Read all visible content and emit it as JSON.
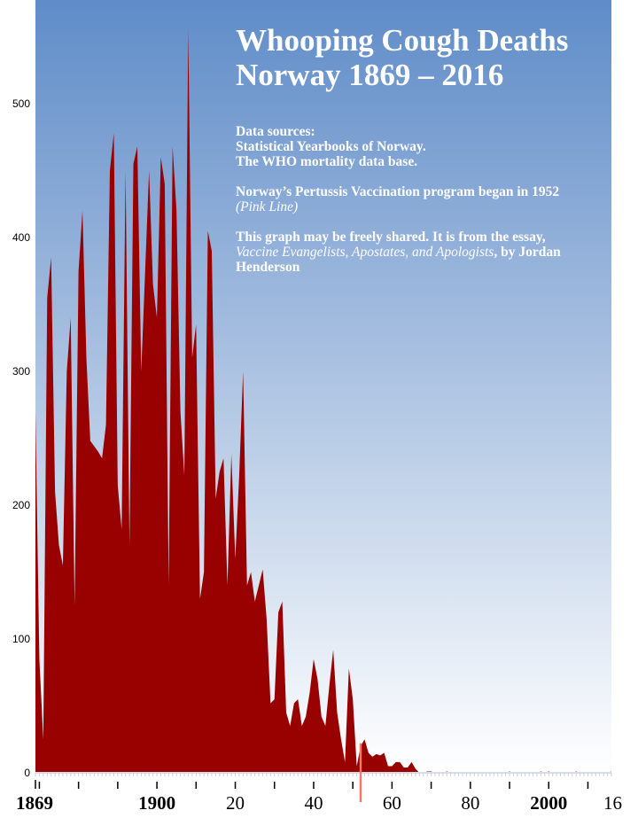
{
  "title": {
    "line1": "Whooping Cough Deaths",
    "line2": "Norway 1869 – 2016"
  },
  "notes": {
    "sources_heading": "Data sources:",
    "source1": "Statistical Yearbooks of Norway.",
    "source2": "The WHO mortality data base.",
    "program_text": "Norway’s Pertussis Vaccination program began in 1952",
    "program_marker": "(Pink Line)",
    "share_text": "This graph may be freely shared. It is from the essay,",
    "essay_title": "Vaccine Evangelists, Apostates, and Apologists",
    "byline": ", by Jordan Henderson"
  },
  "colors": {
    "area_fill": "#990000",
    "background_top": "#5f8cc8",
    "background_bottom": "#ffffff",
    "vaccination_line": "#f07a66"
  },
  "chart_data": {
    "type": "area",
    "title": "Whooping Cough Deaths Norway 1869 – 2016",
    "xlabel": "",
    "ylabel": "",
    "xlim": [
      1869,
      2016
    ],
    "ylim": [
      0,
      560
    ],
    "grid": false,
    "y_ticks": [
      "0",
      "100",
      "200",
      "300",
      "400",
      "500"
    ],
    "x_tick_labels": [
      {
        "year": 1869,
        "text": "1869",
        "bold": true
      },
      {
        "year": 1900,
        "text": "1900",
        "bold": true
      },
      {
        "year": 1920,
        "text": "20",
        "bold": false
      },
      {
        "year": 1940,
        "text": "40",
        "bold": false
      },
      {
        "year": 1960,
        "text": "60",
        "bold": false
      },
      {
        "year": 1980,
        "text": "80",
        "bold": false
      },
      {
        "year": 2000,
        "text": "2000",
        "bold": true
      },
      {
        "year": 2016,
        "text": "16",
        "bold": false
      }
    ],
    "vaccination_year": 1952,
    "series": [
      {
        "x": [
          1869,
          1870,
          1871,
          1872,
          1873,
          1874,
          1875,
          1876,
          1877,
          1878,
          1879,
          1880,
          1881,
          1882,
          1883,
          1884,
          1885,
          1886,
          1887,
          1888,
          1889,
          1890,
          1891,
          1892,
          1893,
          1894,
          1895,
          1896,
          1897,
          1898,
          1899,
          1900,
          1901,
          1902,
          1903,
          1904,
          1905,
          1906,
          1907,
          1908,
          1909,
          1910,
          1911,
          1912,
          1913,
          1914,
          1915,
          1916,
          1917,
          1918,
          1919,
          1920,
          1921,
          1922,
          1923,
          1924,
          1925,
          1926,
          1927,
          1928,
          1929,
          1930,
          1931,
          1932,
          1933,
          1934,
          1935,
          1936,
          1937,
          1938,
          1939,
          1940,
          1941,
          1942,
          1943,
          1944,
          1945,
          1946,
          1947,
          1948,
          1949,
          1950,
          1951,
          1952,
          1953,
          1954,
          1955,
          1956,
          1957,
          1958,
          1959,
          1960,
          1961,
          1962,
          1963,
          1964,
          1965,
          1966,
          1967,
          1968,
          1969,
          1970,
          1971,
          1972,
          1973,
          1974,
          1975,
          1976,
          1977,
          1978,
          1979,
          1980,
          1981,
          1982,
          1983,
          1984,
          1985,
          1986,
          1987,
          1988,
          1989,
          1990,
          1991,
          1992,
          1993,
          1994,
          1995,
          1996,
          1997,
          1998,
          1999,
          2000,
          2001,
          2002,
          2003,
          2004,
          2005,
          2006,
          2007,
          2008,
          2009,
          2010,
          2011,
          2012,
          2013,
          2014,
          2015,
          2016
        ],
        "values": [
          270,
          85,
          25,
          355,
          385,
          210,
          170,
          155,
          300,
          340,
          125,
          375,
          420,
          310,
          248,
          244,
          240,
          235,
          260,
          450,
          478,
          215,
          182,
          450,
          170,
          455,
          468,
          300,
          375,
          450,
          365,
          340,
          460,
          440,
          140,
          468,
          420,
          270,
          222,
          555,
          310,
          335,
          130,
          150,
          405,
          390,
          205,
          225,
          235,
          140,
          238,
          160,
          222,
          300,
          140,
          150,
          128,
          140,
          152,
          115,
          52,
          55,
          120,
          128,
          45,
          35,
          52,
          55,
          35,
          42,
          60,
          85,
          70,
          42,
          35,
          65,
          92,
          45,
          25,
          8,
          78,
          55,
          5,
          20,
          25,
          15,
          12,
          14,
          13,
          15,
          5,
          5,
          8,
          8,
          4,
          4,
          8,
          3,
          0,
          0,
          1,
          1,
          0,
          0,
          0,
          1,
          0,
          0,
          0,
          0,
          0,
          0,
          0,
          0,
          0,
          0,
          0,
          0,
          0,
          0,
          0,
          1,
          0,
          0,
          0,
          0,
          0,
          0,
          0,
          1,
          0,
          1,
          0,
          0,
          0,
          0,
          0,
          0,
          1,
          0,
          0,
          0,
          0,
          0,
          0,
          0,
          0,
          1
        ]
      }
    ]
  }
}
